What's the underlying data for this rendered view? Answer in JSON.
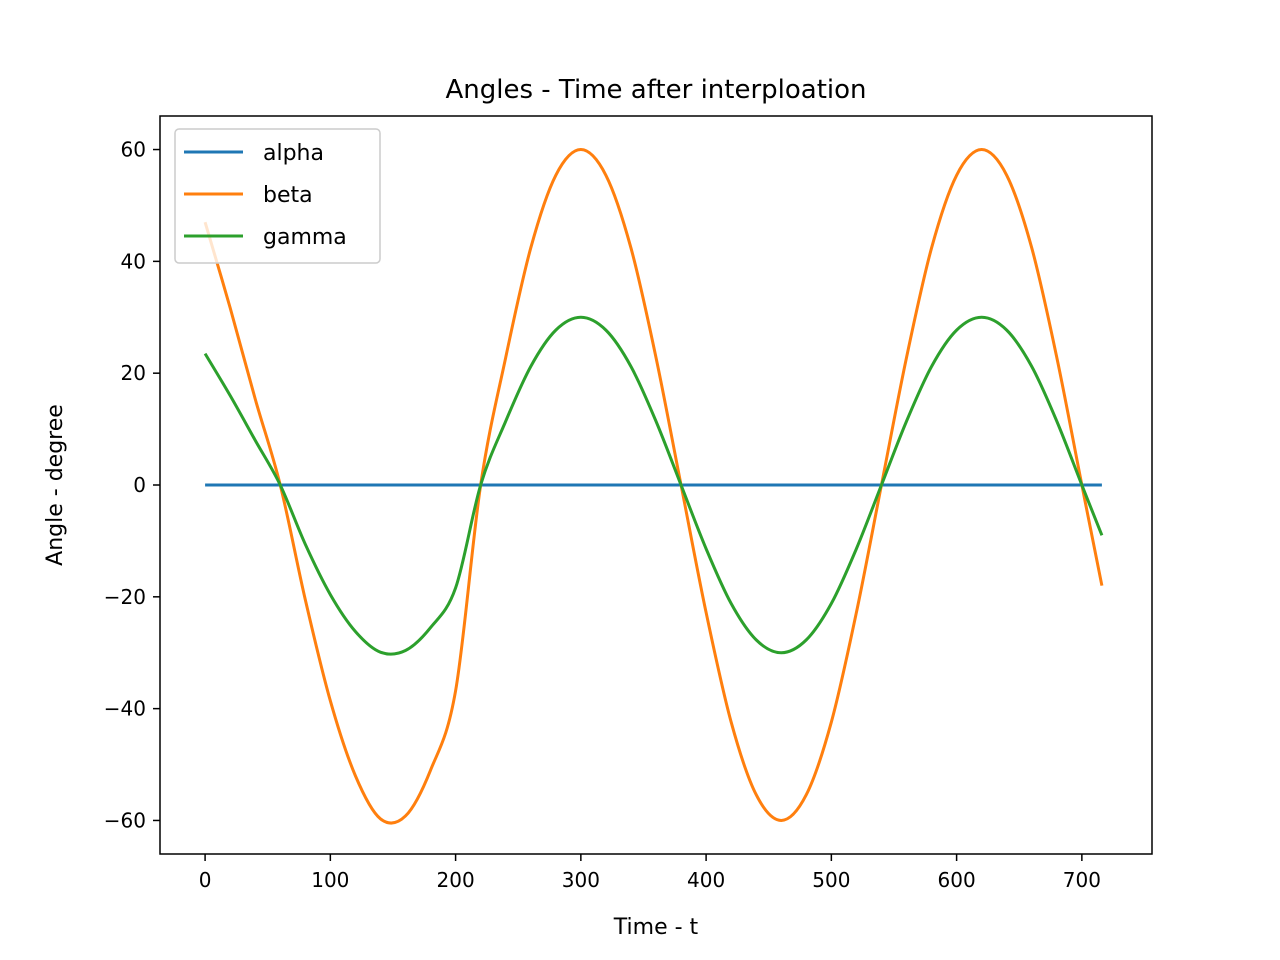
{
  "chart_data": {
    "type": "line",
    "title": "Angles - Time after interploation",
    "xlabel": "Time - t",
    "ylabel": "Angle - degree",
    "xlim": [
      -36,
      756
    ],
    "ylim": [
      -66,
      66
    ],
    "xticks": [
      0,
      100,
      200,
      300,
      400,
      500,
      600,
      700
    ],
    "yticks": [
      60,
      40,
      20,
      0,
      -20,
      -40,
      -60
    ],
    "ytick_labels": [
      "60",
      "40",
      "20",
      "0",
      "−20",
      "−40",
      "−60"
    ],
    "grid": false,
    "legend_position": "top-left",
    "series": [
      {
        "name": "alpha",
        "color": "#1f77b4",
        "x": [
          0,
          60,
          140,
          220,
          300,
          380,
          460,
          540,
          620,
          700,
          716
        ],
        "y": [
          0,
          0,
          0,
          0,
          0,
          0,
          0,
          0,
          0,
          0,
          0
        ]
      },
      {
        "name": "beta",
        "color": "#ff7f0e",
        "x": [
          0,
          20,
          40,
          60,
          80,
          100,
          120,
          140,
          160,
          180,
          200,
          220,
          240,
          260,
          280,
          300,
          320,
          340,
          360,
          380,
          400,
          420,
          440,
          460,
          480,
          500,
          520,
          540,
          560,
          580,
          600,
          620,
          640,
          660,
          680,
          700,
          716
        ],
        "y": [
          47,
          31.7,
          15.4,
          0,
          -20.5,
          -38.6,
          -52,
          -59.7,
          -59.2,
          -51,
          -36.8,
          0,
          22.8,
          42.4,
          55.4,
          60,
          55.4,
          42.4,
          22.8,
          0,
          -22.8,
          -42.4,
          -55.4,
          -60,
          -55.4,
          -42.4,
          -22.8,
          0,
          22.8,
          42.4,
          55.4,
          60,
          55.4,
          42.4,
          22.8,
          0,
          -18
        ]
      },
      {
        "name": "gamma",
        "color": "#2ca02c",
        "x": [
          0,
          20,
          40,
          60,
          80,
          100,
          120,
          140,
          160,
          180,
          200,
          220,
          240,
          260,
          280,
          300,
          320,
          340,
          360,
          380,
          400,
          420,
          440,
          460,
          480,
          500,
          520,
          540,
          560,
          580,
          600,
          620,
          640,
          660,
          680,
          700,
          716
        ],
        "y": [
          23.5,
          16,
          8,
          0,
          -10.6,
          -19.6,
          -26.2,
          -29.9,
          -29.6,
          -25.5,
          -18.4,
          0,
          11.4,
          21.2,
          27.7,
          30,
          27.7,
          21.2,
          11.4,
          0,
          -11.4,
          -21.2,
          -27.7,
          -30,
          -27.7,
          -21.2,
          -11.4,
          0,
          11.4,
          21.2,
          27.7,
          30,
          27.7,
          21.2,
          11.4,
          0,
          -9
        ]
      }
    ]
  }
}
